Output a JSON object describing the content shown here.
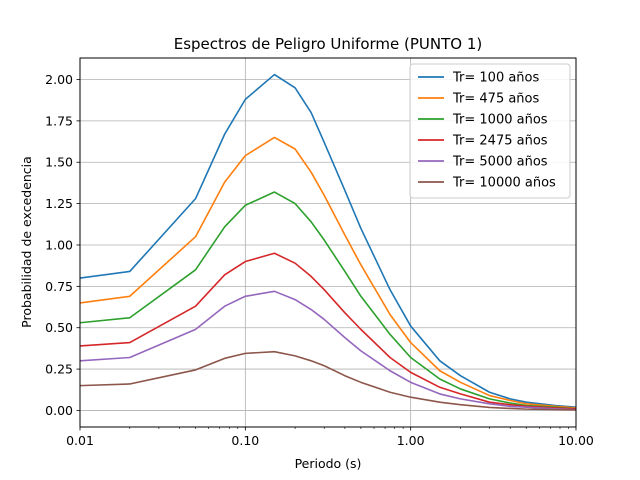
{
  "chart_data": {
    "type": "line",
    "title": "Espectros de Peligro Uniforme (PUNTO 1)",
    "xlabel": "Periodo (s)",
    "ylabel": "Probabilidad de excedencia",
    "xscale": "log",
    "xlim": [
      0.01,
      10
    ],
    "ylim": [
      -0.1,
      2.13
    ],
    "grid": true,
    "legend_position": "top-right",
    "x_ticks": [
      0.01,
      0.1,
      1,
      10
    ],
    "x_tick_labels": [
      "0.01",
      "0.10",
      "1.00",
      "10.00"
    ],
    "y_ticks": [
      0,
      0.25,
      0.5,
      0.75,
      1.0,
      1.25,
      1.5,
      1.75,
      2.0
    ],
    "y_tick_labels": [
      "0.00",
      "0.25",
      "0.50",
      "0.75",
      "1.00",
      "1.25",
      "1.50",
      "1.75",
      "2.00"
    ],
    "x": [
      0.01,
      0.02,
      0.05,
      0.075,
      0.1,
      0.15,
      0.2,
      0.25,
      0.3,
      0.4,
      0.5,
      0.75,
      1.0,
      1.5,
      2.0,
      3.0,
      4.0,
      5.0,
      7.5,
      10.0
    ],
    "series": [
      {
        "name": "Tr= 100 años",
        "color": "#1f77b4",
        "values": [
          0.8,
          0.84,
          1.28,
          1.67,
          1.88,
          2.03,
          1.95,
          1.8,
          1.62,
          1.33,
          1.1,
          0.73,
          0.51,
          0.3,
          0.21,
          0.11,
          0.07,
          0.05,
          0.03,
          0.02
        ]
      },
      {
        "name": "Tr= 475 años",
        "color": "#ff7f0e",
        "values": [
          0.65,
          0.69,
          1.05,
          1.38,
          1.54,
          1.65,
          1.58,
          1.44,
          1.3,
          1.06,
          0.88,
          0.58,
          0.41,
          0.24,
          0.17,
          0.09,
          0.06,
          0.04,
          0.025,
          0.015
        ]
      },
      {
        "name": "Tr= 1000 años",
        "color": "#2ca02c",
        "values": [
          0.53,
          0.56,
          0.85,
          1.11,
          1.24,
          1.32,
          1.25,
          1.14,
          1.03,
          0.84,
          0.69,
          0.46,
          0.32,
          0.19,
          0.13,
          0.07,
          0.045,
          0.03,
          0.02,
          0.01
        ]
      },
      {
        "name": "Tr= 2475 años",
        "color": "#d62728",
        "values": [
          0.39,
          0.41,
          0.63,
          0.82,
          0.9,
          0.95,
          0.89,
          0.81,
          0.73,
          0.59,
          0.49,
          0.32,
          0.23,
          0.14,
          0.1,
          0.05,
          0.035,
          0.025,
          0.015,
          0.01
        ]
      },
      {
        "name": "Tr= 5000 años",
        "color": "#9467bd",
        "values": [
          0.3,
          0.32,
          0.49,
          0.63,
          0.69,
          0.72,
          0.67,
          0.61,
          0.55,
          0.44,
          0.36,
          0.24,
          0.17,
          0.1,
          0.07,
          0.04,
          0.025,
          0.02,
          0.01,
          0.005
        ]
      },
      {
        "name": "Tr= 10000 años",
        "color": "#8c564b",
        "values": [
          0.15,
          0.16,
          0.245,
          0.315,
          0.345,
          0.355,
          0.33,
          0.3,
          0.27,
          0.21,
          0.17,
          0.11,
          0.08,
          0.05,
          0.035,
          0.018,
          0.012,
          0.008,
          0.005,
          0.003
        ]
      }
    ]
  }
}
